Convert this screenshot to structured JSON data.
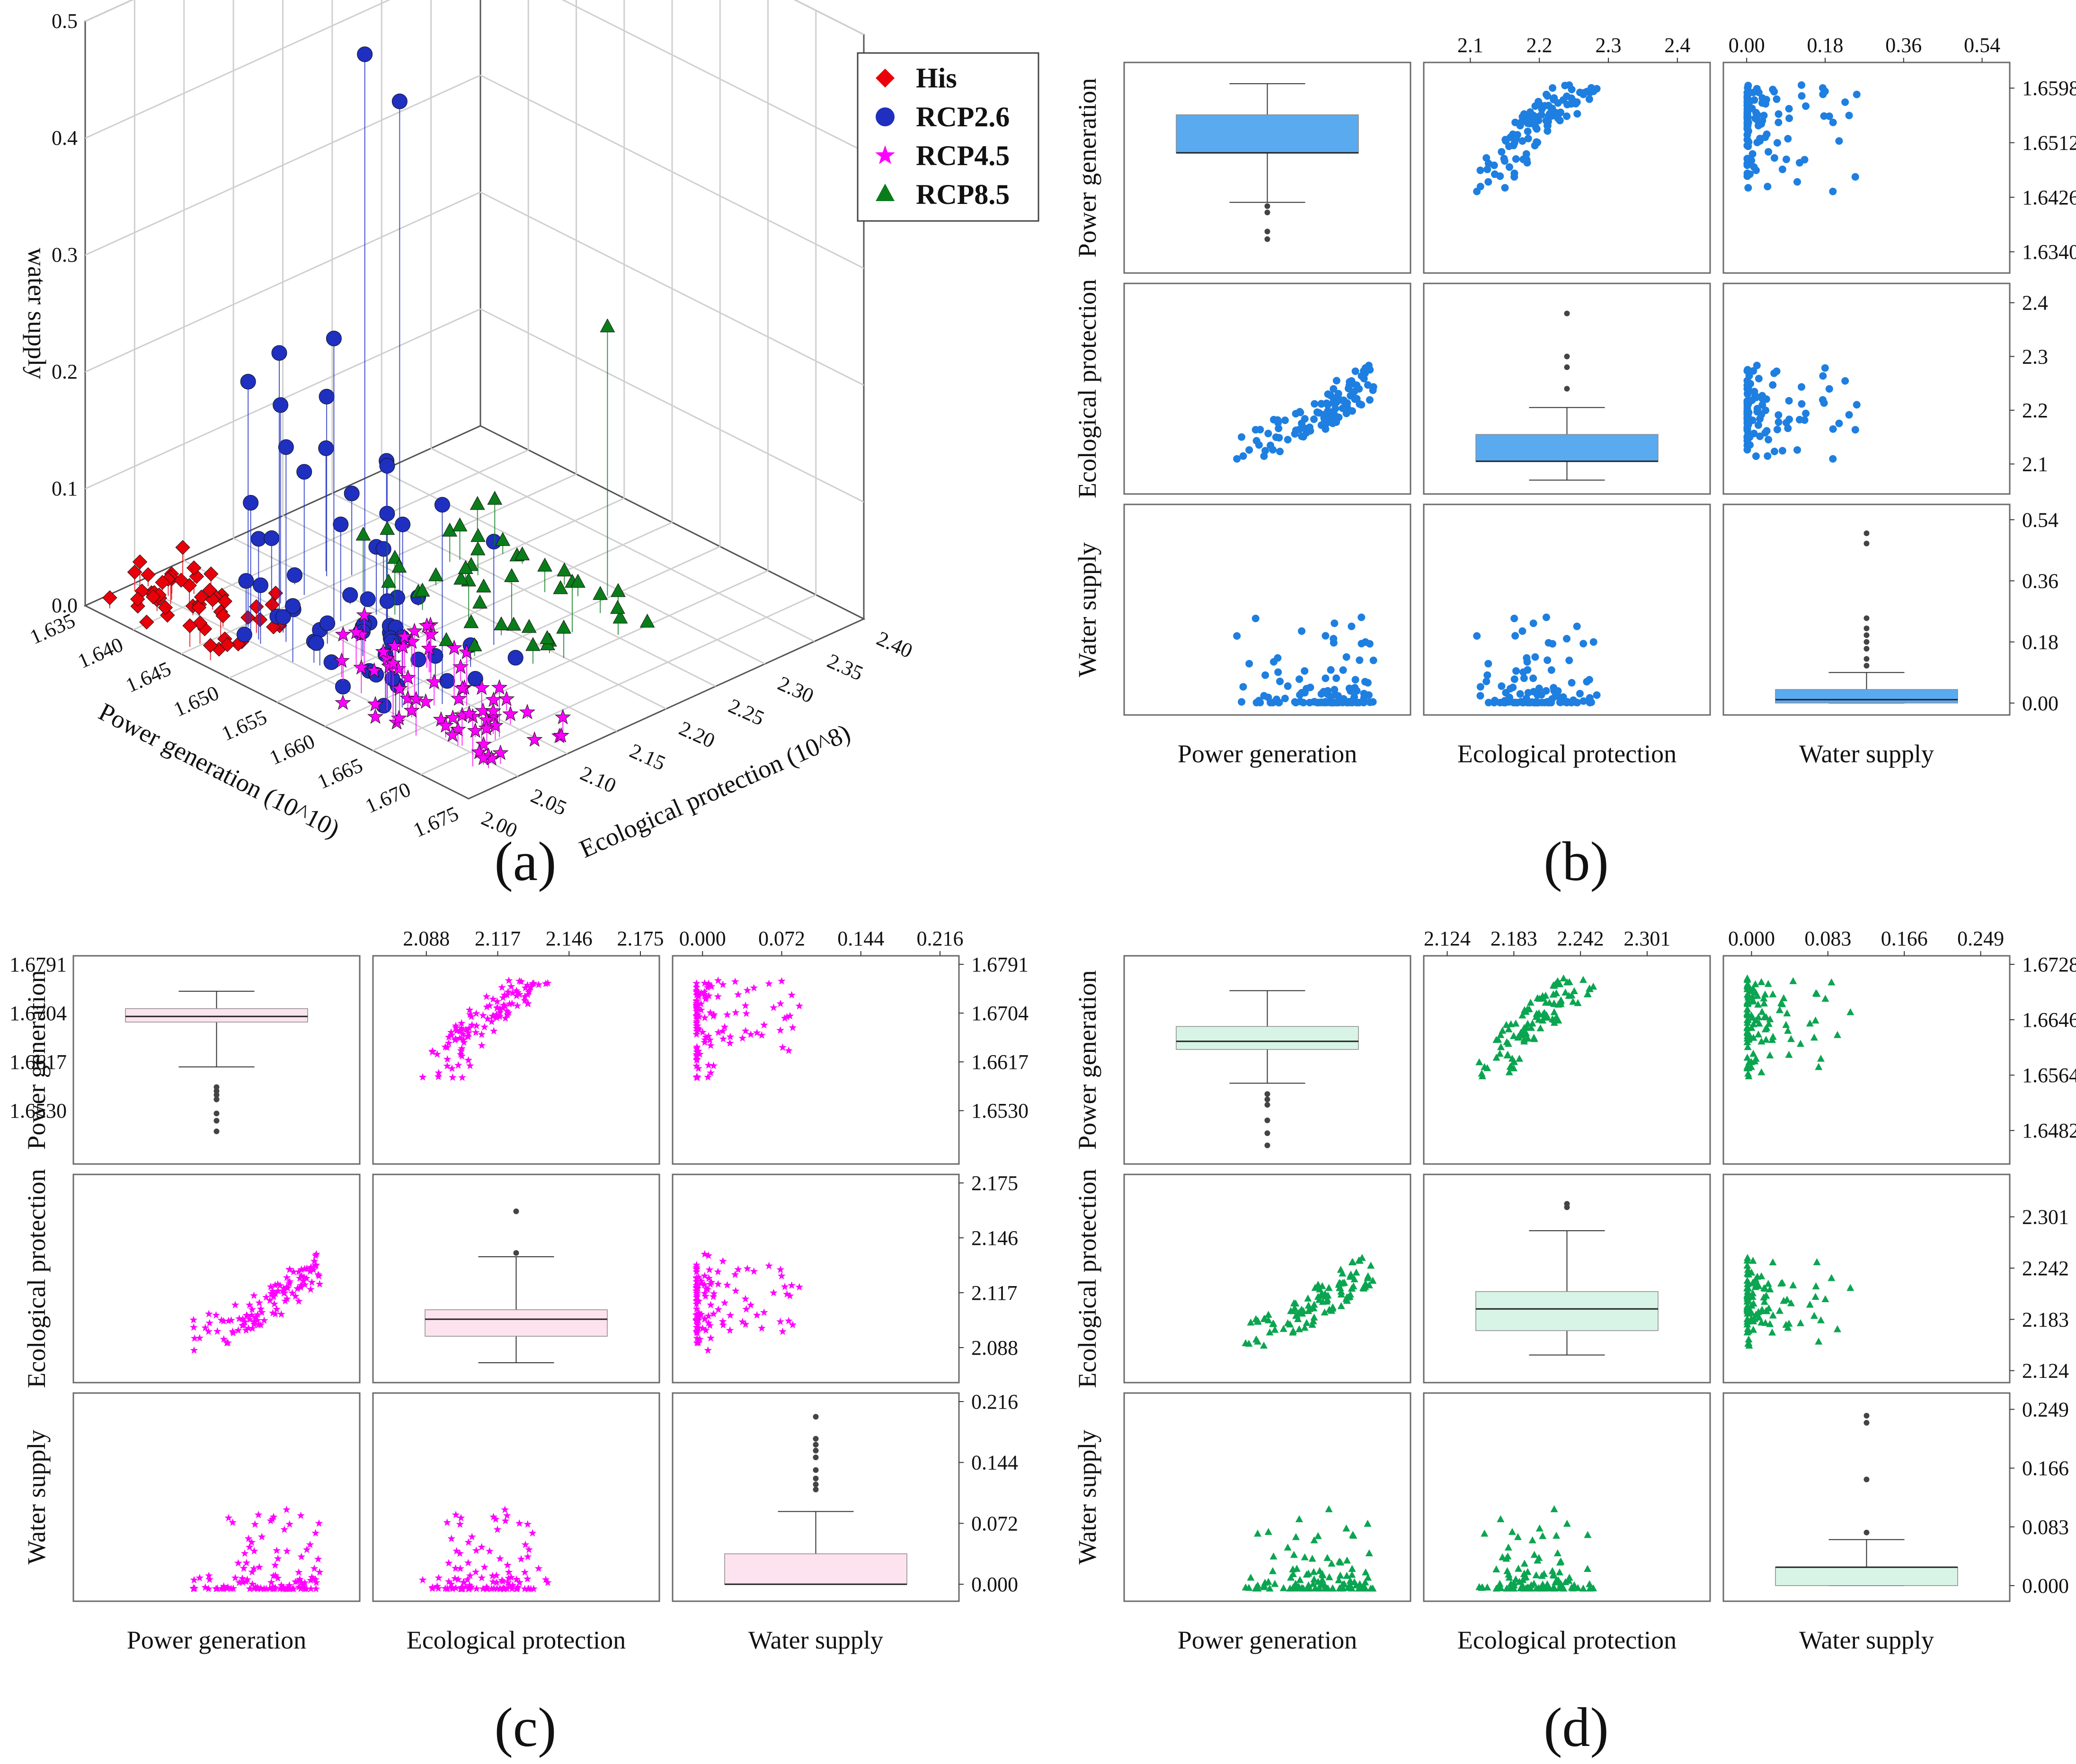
{
  "panels": {
    "a": {
      "label": "(a)"
    },
    "b": {
      "label": "(b)"
    },
    "c": {
      "label": "(c)"
    },
    "d": {
      "label": "(d)"
    }
  },
  "chart_data": [
    {
      "panel": "(a)",
      "type": "scatter3d",
      "zlabel": "water supply",
      "xlabel": "Power generation (10^10)",
      "ylabel": "Ecological protection (10^8)",
      "x_ticks": [
        "1.635",
        "1.640",
        "1.645",
        "1.650",
        "1.655",
        "1.660",
        "1.665",
        "1.670",
        "1.675"
      ],
      "y_ticks": [
        "2.00",
        "2.05",
        "2.10",
        "2.15",
        "2.20",
        "2.25",
        "2.30",
        "2.35",
        "2.40"
      ],
      "z_ticks": [
        "0.0",
        "0.1",
        "0.2",
        "0.3",
        "0.4",
        "0.5"
      ],
      "xlim": [
        1.635,
        1.675
      ],
      "ylim": [
        2.0,
        2.4
      ],
      "zlim": [
        0,
        0.5
      ],
      "legend_position": "top-right",
      "series": [
        {
          "name": "His",
          "marker": "cube",
          "color": "#e8000b"
        },
        {
          "name": "RCP2.6",
          "marker": "sphere",
          "color": "#1f2fbf"
        },
        {
          "name": "RCP4.5",
          "marker": "star",
          "color": "#ff00ff"
        },
        {
          "name": "RCP8.5",
          "marker": "triangle",
          "color": "#0a7d1a"
        }
      ]
    },
    {
      "panel": "(b)",
      "type": "scatter-matrix",
      "color": "#1e7fe0",
      "box_color": "#5aaaf0",
      "marker": "circle",
      "variables": [
        "Power generation",
        "Ecological protection",
        "Water supply"
      ],
      "ranges": {
        "pg": [
          1.632,
          1.6625
        ],
        "ep": [
          2.06,
          2.42
        ],
        "ws": [
          -0.01,
          0.56
        ]
      },
      "row_ticks": {
        "pg": [
          "1.6598",
          "1.6512",
          "1.6426",
          "1.6340"
        ],
        "ep": [
          "2.4",
          "2.3",
          "2.2",
          "2.1"
        ],
        "ws": [
          "0.54",
          "0.36",
          "0.18",
          "0.00"
        ]
      },
      "col_ticks": {
        "ep": [
          "2.1",
          "2.2",
          "2.3",
          "2.4"
        ],
        "ws": [
          "0.00",
          "0.18",
          "0.36",
          "0.54"
        ]
      },
      "box": {
        "pg": {
          "whisker_low": 1.6418,
          "q1": 1.6496,
          "median": 1.6496,
          "q3": 1.6556,
          "whisker_high": 1.6605,
          "outliers": [
            1.6412,
            1.6402,
            1.6372,
            1.636
          ]
        },
        "ep": {
          "whisker_low": 2.07,
          "q1": 2.105,
          "median": 2.105,
          "q3": 2.155,
          "whisker_high": 2.205,
          "outliers": [
            2.38,
            2.3,
            2.28,
            2.24
          ]
        },
        "ws": {
          "whisker_low": 0.0,
          "q1": 0.0,
          "median": 0.01,
          "q3": 0.04,
          "whisker_high": 0.09,
          "outliers": [
            0.5,
            0.47,
            0.25,
            0.22,
            0.2,
            0.18,
            0.16,
            0.13,
            0.11
          ]
        }
      }
    },
    {
      "panel": "(c)",
      "type": "scatter-matrix",
      "color": "#ff00ff",
      "box_color": "#fde3ee",
      "marker": "star",
      "variables": [
        "Power generation",
        "Ecological protection",
        "Water supply"
      ],
      "ranges": {
        "pg": [
          1.645,
          1.6791
        ],
        "ep": [
          2.074,
          2.175
        ],
        "ws": [
          -0.01,
          0.216
        ]
      },
      "row_ticks": {
        "pg": [
          "1.6791",
          "1.6704",
          "1.6617",
          "1.6530"
        ],
        "ep": [
          "2.175",
          "2.146",
          "2.117",
          "2.088"
        ],
        "ws": [
          "0.216",
          "0.144",
          "0.072",
          "0.000"
        ]
      },
      "col_ticks": {
        "ep": [
          "2.088",
          "2.117",
          "2.146",
          "2.175"
        ],
        "ws": [
          "0.000",
          "0.072",
          "0.144",
          "0.216"
        ]
      },
      "box": {
        "pg": {
          "whisker_low": 1.6608,
          "q1": 1.6688,
          "median": 1.6698,
          "q3": 1.6712,
          "whisker_high": 1.6743,
          "outliers": [
            1.6572,
            1.6565,
            1.6558,
            1.655,
            1.6525,
            1.6512,
            1.6493
          ]
        },
        "ep": {
          "whisker_low": 2.08,
          "q1": 2.094,
          "median": 2.103,
          "q3": 2.108,
          "whisker_high": 2.136,
          "outliers": [
            2.16,
            2.138
          ]
        },
        "ws": {
          "whisker_low": 0.0,
          "q1": 0.0,
          "median": 0.0,
          "q3": 0.036,
          "whisker_high": 0.086,
          "outliers": [
            0.198,
            0.172,
            0.165,
            0.158,
            0.15,
            0.135,
            0.125,
            0.118,
            0.112
          ]
        }
      }
    },
    {
      "panel": "(d)",
      "type": "scatter-matrix",
      "color": "#0aa550",
      "box_color": "#d8f4e6",
      "marker": "triangle",
      "variables": [
        "Power generation",
        "Ecological protection",
        "Water supply"
      ],
      "ranges": {
        "pg": [
          1.6445,
          1.6728
        ],
        "ep": [
          2.12,
          2.34
        ],
        "ws": [
          -0.01,
          0.26
        ]
      },
      "row_ticks": {
        "pg": [
          "1.6728",
          "1.6646",
          "1.6564",
          "1.6482"
        ],
        "ep": [
          "2.301",
          "2.242",
          "2.183",
          "2.124"
        ],
        "ws": [
          "0.249",
          "0.166",
          "0.083",
          "0.000"
        ]
      },
      "col_ticks": {
        "ep": [
          "2.124",
          "2.183",
          "2.242",
          "2.301"
        ],
        "ws": [
          "0.000",
          "0.083",
          "0.166",
          "0.249"
        ]
      },
      "box": {
        "pg": {
          "whisker_low": 1.6552,
          "q1": 1.6602,
          "median": 1.6614,
          "q3": 1.6636,
          "whisker_high": 1.6689,
          "outliers": [
            1.6536,
            1.6528,
            1.652,
            1.6497,
            1.6478,
            1.646
          ]
        },
        "ep": {
          "whisker_low": 2.142,
          "q1": 2.17,
          "median": 2.195,
          "q3": 2.215,
          "whisker_high": 2.285,
          "outliers": [
            2.316,
            2.312
          ]
        },
        "ws": {
          "whisker_low": 0.0,
          "q1": 0.0,
          "median": 0.026,
          "q3": 0.026,
          "whisker_high": 0.065,
          "outliers": [
            0.24,
            0.23,
            0.15,
            0.075
          ]
        }
      }
    }
  ]
}
